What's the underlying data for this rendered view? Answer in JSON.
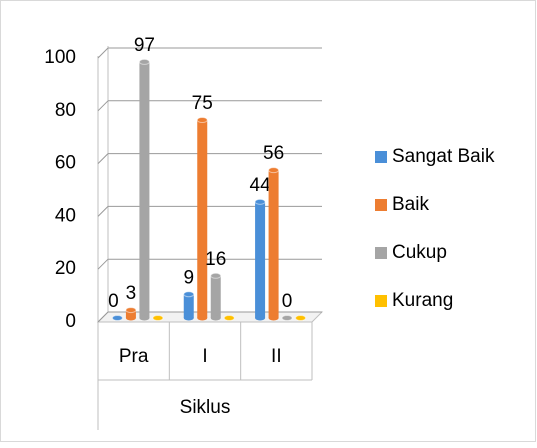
{
  "chart_data": {
    "type": "bar3d",
    "categories": [
      "Pra",
      "I",
      "II"
    ],
    "x_label": "Siklus",
    "series": [
      {
        "name": "Sangat Baik",
        "color": "#4a8fd8",
        "values": [
          0,
          9,
          44
        ],
        "show_labels": true
      },
      {
        "name": "Baik",
        "color": "#ed7d31",
        "values": [
          3,
          75,
          56
        ],
        "show_labels": true
      },
      {
        "name": "Cukup",
        "color": "#a5a5a5",
        "values": [
          97,
          16,
          0
        ],
        "show_labels": true
      },
      {
        "name": "Kurang",
        "color": "#ffc000",
        "values": [
          0,
          0,
          0
        ],
        "show_labels": false
      }
    ],
    "ylim": [
      0,
      100
    ],
    "yticks": [
      0,
      20,
      40,
      60,
      80,
      100
    ],
    "grid": true,
    "legend": "right"
  }
}
